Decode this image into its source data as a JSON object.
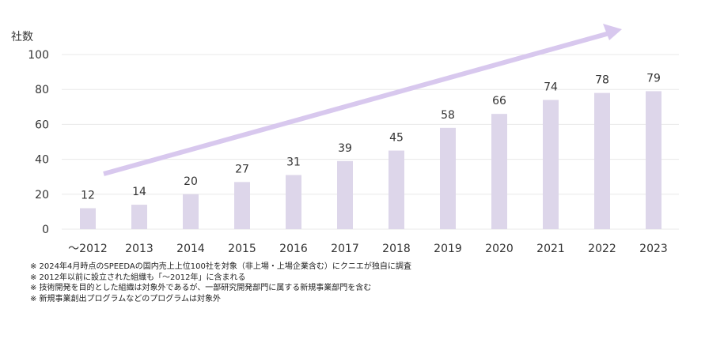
{
  "chart_data": {
    "type": "bar",
    "title": "",
    "ylabel": "社数",
    "xlabel": "",
    "categories": [
      "～2012",
      "2013",
      "2014",
      "2015",
      "2016",
      "2017",
      "2018",
      "2019",
      "2020",
      "2021",
      "2022",
      "2023"
    ],
    "values": [
      12,
      14,
      20,
      27,
      31,
      39,
      45,
      58,
      66,
      74,
      78,
      79
    ],
    "ylim": [
      0,
      100
    ],
    "yticks": [
      0,
      20,
      40,
      60,
      80,
      100
    ],
    "grid": true,
    "legend": "none",
    "data_labels": true,
    "annotations": [
      "upward trend arrow from ～2012 to 2023"
    ],
    "colors": {
      "bar": "#ddd6ea",
      "arrow": "#d8c8ee",
      "grid": "#e8e8e8",
      "text": "#333333"
    }
  },
  "notes": [
    "※ 2024年4月時点のSPEEDAの国内売上上位100社を対象（非上場・上場企業含む）にクニエが独自に調査",
    "※ 2012年以前に設立された組織も「～2012年」に含まれる",
    "※ 技術開発を目的とした組織は対象外であるが、一部研究開発部門に属する新規事業部門を含む",
    "※ 新規事業創出プログラムなどのプログラムは対象外"
  ]
}
